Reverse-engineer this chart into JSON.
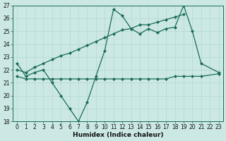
{
  "xlabel": "Humidex (Indice chaleur)",
  "bg_color": "#cce8e4",
  "line_color": "#1a6b5a",
  "grid_color": "#b0d8d2",
  "line_main_x": [
    0,
    1,
    2,
    3,
    4,
    5,
    6,
    7,
    8,
    9,
    10,
    11,
    12,
    13,
    14,
    15,
    16,
    17,
    18,
    19,
    20,
    21,
    23
  ],
  "line_main_y": [
    22.5,
    21.5,
    21.8,
    22.0,
    21.0,
    20.0,
    19.0,
    18.0,
    19.5,
    21.5,
    23.5,
    26.7,
    26.2,
    25.2,
    24.8,
    25.2,
    24.9,
    25.2,
    25.3,
    27.0,
    25.0,
    22.5,
    21.8
  ],
  "line_rising_x": [
    0,
    1,
    2,
    3,
    4,
    5,
    6,
    7,
    8,
    9,
    10,
    11,
    12,
    13,
    14,
    15,
    16,
    17,
    18,
    19
  ],
  "line_rising_y": [
    22.0,
    21.8,
    22.2,
    22.5,
    22.8,
    23.1,
    23.3,
    23.6,
    23.9,
    24.2,
    24.5,
    24.8,
    25.1,
    25.2,
    25.5,
    25.5,
    25.7,
    25.9,
    26.1,
    26.3
  ],
  "line_flat_x": [
    0,
    1,
    2,
    3,
    4,
    5,
    6,
    7,
    8,
    9,
    10,
    11,
    12,
    13,
    14,
    15,
    16,
    17,
    18,
    19,
    20,
    21,
    23
  ],
  "line_flat_y": [
    21.5,
    21.3,
    21.3,
    21.3,
    21.3,
    21.3,
    21.3,
    21.3,
    21.3,
    21.3,
    21.3,
    21.3,
    21.3,
    21.3,
    21.3,
    21.3,
    21.3,
    21.3,
    21.5,
    21.5,
    21.5,
    21.5,
    21.7
  ],
  "ylim": [
    18,
    27
  ],
  "xlim": [
    -0.5,
    23.5
  ],
  "yticks": [
    18,
    19,
    20,
    21,
    22,
    23,
    24,
    25,
    26,
    27
  ],
  "xticks": [
    0,
    1,
    2,
    3,
    4,
    5,
    6,
    7,
    8,
    9,
    10,
    11,
    12,
    13,
    14,
    15,
    16,
    17,
    18,
    19,
    20,
    21,
    22,
    23
  ],
  "marker_size": 2.2,
  "line_width": 0.9,
  "tick_fontsize": 5.5,
  "xlabel_fontsize": 6.5
}
